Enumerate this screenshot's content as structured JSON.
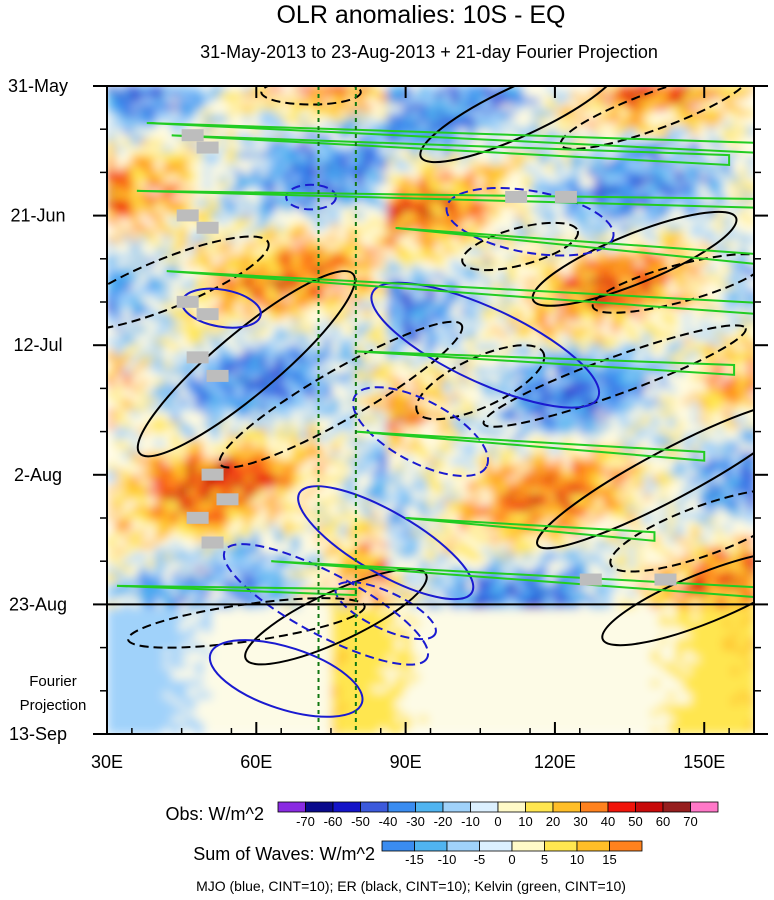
{
  "chart_data": {
    "type": "heatmap",
    "title": "OLR anomalies: 10S - EQ",
    "subtitle": "31-May-2013 to 23-Aug-2013 + 21-day Fourier Projection",
    "x_axis": {
      "label": "",
      "range": [
        30,
        160
      ],
      "ticks": [
        30,
        60,
        90,
        120,
        150
      ],
      "tick_labels": [
        "30E",
        "60E",
        "90E",
        "120E",
        "150E"
      ]
    },
    "y_axis": {
      "label": "",
      "range_days": [
        0,
        105
      ],
      "ticks_days": [
        0,
        21,
        42,
        63,
        84,
        105
      ],
      "tick_labels": [
        "31-May",
        "21-Jun",
        "12-Jul",
        "2-Aug",
        "23-Aug",
        "13-Sep"
      ],
      "reversed": true
    },
    "observation_end_day": 84,
    "projection_label": [
      "Fourier",
      "Projection"
    ],
    "reference_lines_lon": [
      72.5,
      80
    ],
    "obs_colorbar": {
      "label": "Obs: W/m^2",
      "levels": [
        -70,
        -60,
        -50,
        -40,
        -30,
        -20,
        -10,
        0,
        10,
        20,
        30,
        40,
        50,
        60,
        70
      ],
      "colors": [
        "#8a2be2",
        "#0a0a8c",
        "#1414c8",
        "#3c5adc",
        "#3a8cf0",
        "#50b4f0",
        "#a0d2fa",
        "#dcf0ff",
        "#fffac8",
        "#ffe650",
        "#ffbe28",
        "#ff821e",
        "#f0140a",
        "#c80a0a",
        "#961e1e",
        "#ff78c8"
      ]
    },
    "waves_colorbar": {
      "label": "Sum of Waves: W/m^2",
      "levels": [
        -15,
        -10,
        -5,
        0,
        5,
        10,
        15
      ],
      "colors": [
        "#3a8cf0",
        "#50b4f0",
        "#a0d2fa",
        "#dcf0ff",
        "#fffac8",
        "#ffe650",
        "#ffbe28",
        "#ff821e"
      ]
    },
    "contour_legend": "MJO (blue, CINT=10); ER (black, CINT=10); Kelvin (green, CINT=10)",
    "series": [
      {
        "name": "MJO",
        "color": "#1a1ad0",
        "cint": 10
      },
      {
        "name": "ER",
        "color": "#000000",
        "cint": 10
      },
      {
        "name": "Kelvin",
        "color": "#22cc22",
        "cint": 10
      }
    ],
    "contours": {
      "er": [
        {
          "sign": "-",
          "cx": 71,
          "cy": 1,
          "rx": 10,
          "ry": 2,
          "rot": 0
        },
        {
          "sign": "+",
          "cx": 113,
          "cy": 4,
          "rx": 22,
          "ry": 4,
          "rot": -25
        },
        {
          "sign": "-",
          "cx": 140,
          "cy": 4,
          "rx": 20,
          "ry": 3,
          "rot": -20
        },
        {
          "sign": "-",
          "cx": 42,
          "cy": 32,
          "rx": 22,
          "ry": 4,
          "rot": -22
        },
        {
          "sign": "-",
          "cx": 113,
          "cy": 26,
          "rx": 12,
          "ry": 3,
          "rot": -15
        },
        {
          "sign": "+",
          "cx": 136,
          "cy": 28,
          "rx": 22,
          "ry": 4,
          "rot": -22
        },
        {
          "sign": "-",
          "cx": 145,
          "cy": 32,
          "rx": 18,
          "ry": 3,
          "rot": -15
        },
        {
          "sign": "+",
          "cx": 58,
          "cy": 45,
          "rx": 28,
          "ry": 5,
          "rot": -40
        },
        {
          "sign": "-",
          "cx": 77,
          "cy": 50,
          "rx": 28,
          "ry": 4,
          "rot": -30
        },
        {
          "sign": "-",
          "cx": 105,
          "cy": 48,
          "rx": 14,
          "ry": 4,
          "rot": -25
        },
        {
          "sign": "-",
          "cx": 132,
          "cy": 47,
          "rx": 28,
          "ry": 3,
          "rot": -20
        },
        {
          "sign": "+",
          "cx": 143,
          "cy": 63,
          "rx": 30,
          "ry": 4,
          "rot": -28
        },
        {
          "sign": "-",
          "cx": 150,
          "cy": 72,
          "rx": 20,
          "ry": 4,
          "rot": -20
        },
        {
          "sign": "+",
          "cx": 150,
          "cy": 83,
          "rx": 22,
          "ry": 4,
          "rot": -22
        },
        {
          "sign": "+",
          "cx": 76,
          "cy": 86,
          "rx": 20,
          "ry": 4,
          "rot": -25
        },
        {
          "sign": "-",
          "cx": 58,
          "cy": 87,
          "rx": 24,
          "ry": 3,
          "rot": -8
        }
      ],
      "mjo": [
        {
          "sign": "-",
          "cx": 71,
          "cy": 18,
          "rx": 5,
          "ry": 2,
          "rot": 0
        },
        {
          "sign": "-",
          "cx": 115,
          "cy": 22,
          "rx": 17,
          "ry": 5,
          "rot": 10
        },
        {
          "sign": "+",
          "cx": 53,
          "cy": 36,
          "rx": 8,
          "ry": 3,
          "rot": 10
        },
        {
          "sign": "+",
          "cx": 106,
          "cy": 42,
          "rx": 25,
          "ry": 6,
          "rot": 25
        },
        {
          "sign": "-",
          "cx": 93,
          "cy": 56,
          "rx": 15,
          "ry": 5,
          "rot": 28
        },
        {
          "sign": "+",
          "cx": 86,
          "cy": 74,
          "rx": 20,
          "ry": 5,
          "rot": 30
        },
        {
          "sign": "-",
          "cx": 74,
          "cy": 84,
          "rx": 23,
          "ry": 5,
          "rot": 28
        },
        {
          "sign": "-",
          "cx": 86,
          "cy": 85,
          "rx": 11,
          "ry": 3,
          "rot": 25
        },
        {
          "sign": "+",
          "cx": 66,
          "cy": 96,
          "rx": 16,
          "ry": 5,
          "rot": 18
        }
      ],
      "kelvin": [
        {
          "lon0": 38,
          "day0": 6,
          "lon1": 160,
          "day1": 10,
          "w": 0.8
        },
        {
          "lon0": 43,
          "day0": 8,
          "lon1": 155,
          "day1": 12,
          "w": 0.8
        },
        {
          "lon0": 36,
          "day0": 17,
          "lon1": 160,
          "day1": 19,
          "w": 0.7
        },
        {
          "lon0": 88,
          "day0": 23,
          "lon1": 160,
          "day1": 28,
          "w": 0.8
        },
        {
          "lon0": 42,
          "day0": 30,
          "lon1": 160,
          "day1": 36,
          "w": 0.9
        },
        {
          "lon0": 80,
          "day0": 43,
          "lon1": 156,
          "day1": 46,
          "w": 0.8
        },
        {
          "lon0": 80,
          "day0": 56,
          "lon1": 150,
          "day1": 60,
          "w": 0.7
        },
        {
          "lon0": 90,
          "day0": 70,
          "lon1": 140,
          "day1": 73,
          "w": 0.7
        },
        {
          "lon0": 63,
          "day0": 77,
          "lon1": 160,
          "day1": 82,
          "w": 0.8
        },
        {
          "lon0": 32,
          "day0": 81,
          "lon1": 80,
          "day1": 82,
          "w": 0.5
        }
      ]
    }
  }
}
